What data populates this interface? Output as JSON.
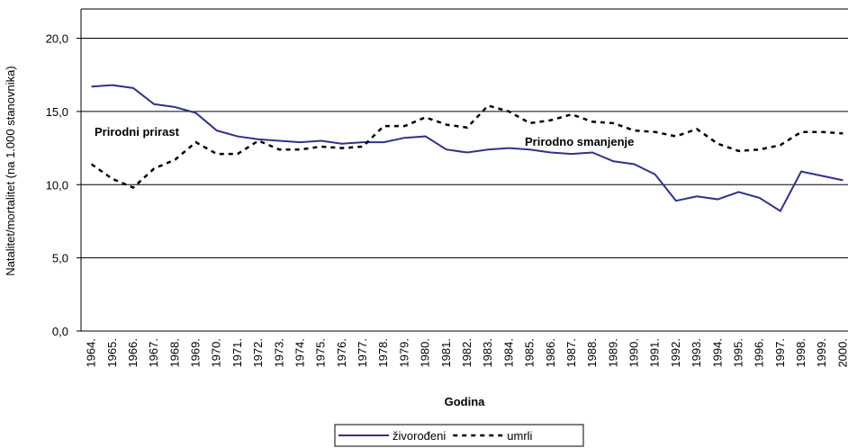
{
  "chart_data": {
    "type": "line",
    "y_label": "Natalitet/mortalitet (na 1.000 stanovnika)",
    "x_label": "Godina",
    "categories": [
      "1964.",
      "1965.",
      "1966.",
      "1967.",
      "1968.",
      "1969.",
      "1970.",
      "1971.",
      "1972.",
      "1973.",
      "1974.",
      "1975.",
      "1976.",
      "1977.",
      "1978.",
      "1979.",
      "1980.",
      "1981.",
      "1982.",
      "1983.",
      "1984.",
      "1985.",
      "1986.",
      "1987.",
      "1988.",
      "1989.",
      "1990.",
      "1991.",
      "1992.",
      "1993.",
      "1994.",
      "1995.",
      "1996.",
      "1997.",
      "1998.",
      "1999.",
      "2000."
    ],
    "series": [
      {
        "name": "živorođeni",
        "color": "#2e3192",
        "dash": "solid",
        "values": [
          16.7,
          16.8,
          16.6,
          15.5,
          15.3,
          14.9,
          13.7,
          13.3,
          13.1,
          13.0,
          12.9,
          13.0,
          12.8,
          12.9,
          12.9,
          13.2,
          13.3,
          12.4,
          12.2,
          12.4,
          12.5,
          12.4,
          12.2,
          12.1,
          12.2,
          11.6,
          11.4,
          10.7,
          8.9,
          9.2,
          9.0,
          9.5,
          9.1,
          8.2,
          10.9,
          10.6,
          10.3
        ]
      },
      {
        "name": "umrli",
        "color": "#000000",
        "dash": "dashed",
        "values": [
          11.4,
          10.4,
          9.8,
          11.1,
          11.7,
          12.9,
          12.1,
          12.1,
          13.0,
          12.4,
          12.4,
          12.6,
          12.5,
          12.6,
          14.0,
          14.0,
          14.6,
          14.1,
          13.9,
          15.4,
          15.0,
          14.2,
          14.4,
          14.8,
          14.3,
          14.2,
          13.7,
          13.6,
          13.3,
          13.8,
          12.8,
          12.3,
          12.4,
          12.7,
          13.6,
          13.6,
          13.5
        ]
      }
    ],
    "ylim": [
      0,
      22
    ],
    "yticks": [
      {
        "value": 0,
        "label": "0,0"
      },
      {
        "value": 5,
        "label": "5,0"
      },
      {
        "value": 10,
        "label": "10,0"
      },
      {
        "value": 15,
        "label": "15,0"
      },
      {
        "value": 20,
        "label": "20,0"
      }
    ],
    "grid": true,
    "annotations": [
      "Prirodni prirast",
      "Prirodno smanjenje"
    ]
  }
}
